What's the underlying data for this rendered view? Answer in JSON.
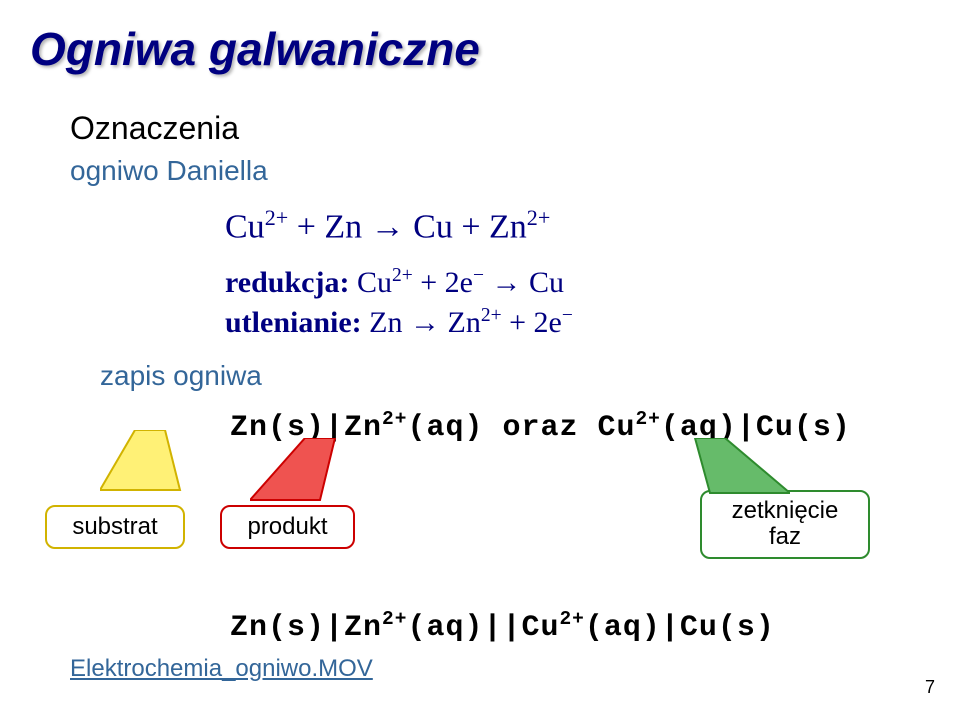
{
  "title": "Ogniwa galwaniczne",
  "section": "Oznaczenia",
  "cell_name": "ogniwo Daniella",
  "equations": {
    "overall_html": "Cu<sup>2+</sup> + Zn &rarr; Cu + Zn<sup>2+</sup>",
    "reduction_label": "redukcja:",
    "reduction_html": " Cu<sup>2+</sup> + 2e<sup>&minus;</sup> &rarr; Cu",
    "oxidation_label": "utlenianie:",
    "oxidation_html": " Zn &rarr; Zn<sup>2+</sup> + 2e<sup>&minus;</sup>"
  },
  "zapis_label": "zapis ogniwa",
  "notation1_html": "Zn(s)|Zn<sup>2+</sup>(aq) oraz Cu<sup>2+</sup>(aq)|Cu(s)",
  "notation2_html": "Zn(s)|Zn<sup>2+</sup>(aq)||Cu<sup>2+</sup>(aq)|Cu(s)",
  "callouts": {
    "substrate": "substrat",
    "product": "produkt",
    "phase_html": "zetknięcie<br>faz"
  },
  "link_text": "Elektrochemia_ogniwo.MOV",
  "page_number": "7",
  "colors": {
    "title": "#000080",
    "subhead": "#336699",
    "equation": "#000080",
    "yellow_border": "#d1b300",
    "yellow_fill": "#fff176",
    "red_border": "#cc0000",
    "red_fill": "#ef5350",
    "green_border": "#2e8b2e",
    "green_fill": "#66bb6a"
  }
}
